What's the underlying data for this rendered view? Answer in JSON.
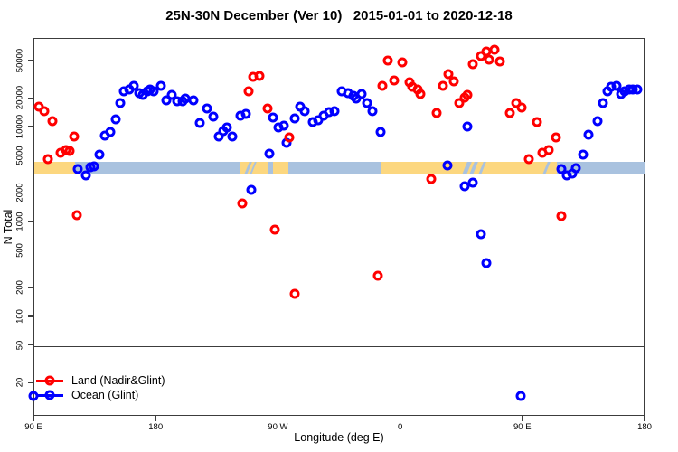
{
  "chart_data": {
    "type": "scatter",
    "title": "25N-30N December (Ver 10)   2015-01-01 to 2020-12-18",
    "xlabel": "Longitude (deg E)",
    "ylabel": "N Total",
    "x_axis": {
      "min": 90,
      "max": 540,
      "wraps_globe": true,
      "ticks": [
        {
          "v": 90,
          "label": "90 E"
        },
        {
          "v": 180,
          "label": "180"
        },
        {
          "v": 270,
          "label": "90 W"
        },
        {
          "v": 360,
          "label": "0"
        },
        {
          "v": 450,
          "label": "90 E"
        },
        {
          "v": 540,
          "label": "180"
        }
      ]
    },
    "y_axis": {
      "scale": "log",
      "min": 9,
      "max": 85000,
      "ticks": [
        {
          "v": 20,
          "label": "20"
        },
        {
          "v": 50,
          "label": "50"
        },
        {
          "v": 100,
          "label": "100"
        },
        {
          "v": 200,
          "label": "200"
        },
        {
          "v": 500,
          "label": "500"
        },
        {
          "v": 1000,
          "label": "1000"
        },
        {
          "v": 2000,
          "label": "2000"
        },
        {
          "v": 5000,
          "label": "5000"
        },
        {
          "v": 10000,
          "label": "10000"
        },
        {
          "v": 20000,
          "label": "20000"
        },
        {
          "v": 50000,
          "label": "50000"
        }
      ]
    },
    "reference_line_y": 50,
    "map_band": {
      "n_top": 4350,
      "n_bottom": 3200,
      "ocean_color": "#a9c2df",
      "land_color": "#fcd77f",
      "land_segments": [
        [
          90,
          120
        ],
        [
          241,
          262
        ],
        [
          266,
          277
        ],
        [
          345,
          475
        ]
      ],
      "ocean_streaks": [
        [
          246.5,
          248.5
        ],
        [
          250.5,
          252
        ],
        [
          407,
          410
        ],
        [
          412,
          414.5
        ],
        [
          419,
          421
        ],
        [
          466,
          468
        ]
      ]
    },
    "legend": {
      "position": "bottom-left"
    },
    "series": [
      {
        "name": "Land (Nadir&Glint)",
        "color": "#ff0000",
        "marker": "open-circle",
        "points": [
          [
            93,
            16600
          ],
          [
            97,
            14800
          ],
          [
            103,
            11700
          ],
          [
            100,
            4640
          ],
          [
            109,
            5410
          ],
          [
            113,
            5780
          ],
          [
            116,
            5650
          ],
          [
            119,
            8030
          ],
          [
            121,
            1190
          ],
          [
            243,
            1590
          ],
          [
            248,
            24000
          ],
          [
            251,
            34100
          ],
          [
            256,
            34900
          ],
          [
            262,
            15900
          ],
          [
            267,
            840
          ],
          [
            278,
            7850
          ],
          [
            282,
            177
          ],
          [
            343,
            274
          ],
          [
            346,
            27400
          ],
          [
            350,
            50700
          ],
          [
            355,
            31300
          ],
          [
            361,
            48500
          ],
          [
            366,
            29900
          ],
          [
            368,
            26900
          ],
          [
            372,
            25100
          ],
          [
            374,
            22500
          ],
          [
            382,
            2870
          ],
          [
            386,
            14200
          ],
          [
            391,
            27400
          ],
          [
            395,
            36500
          ],
          [
            399,
            30600
          ],
          [
            403,
            18100
          ],
          [
            407,
            20600
          ],
          [
            409,
            22000
          ],
          [
            413,
            46400
          ],
          [
            419,
            56500
          ],
          [
            423,
            63100
          ],
          [
            425,
            51800
          ],
          [
            429,
            65900
          ],
          [
            433,
            49500
          ],
          [
            440,
            14200
          ],
          [
            445,
            18100
          ],
          [
            449,
            16200
          ],
          [
            454,
            4640
          ],
          [
            460,
            11400
          ],
          [
            464,
            5410
          ],
          [
            469,
            5780
          ],
          [
            474,
            7850
          ],
          [
            478,
            1170
          ]
        ]
      },
      {
        "name": "Ocean (Glint)",
        "color": "#0000ff",
        "marker": "open-circle",
        "points": [
          [
            89,
            15
          ],
          [
            122,
            3650
          ],
          [
            128,
            3130
          ],
          [
            131,
            3820
          ],
          [
            134,
            3900
          ],
          [
            138,
            5180
          ],
          [
            142,
            8220
          ],
          [
            146,
            8950
          ],
          [
            150,
            12200
          ],
          [
            153,
            18100
          ],
          [
            156,
            24100
          ],
          [
            160,
            25200
          ],
          [
            163,
            27400
          ],
          [
            167,
            23000
          ],
          [
            170,
            21900
          ],
          [
            173,
            24100
          ],
          [
            175,
            25200
          ],
          [
            178,
            24100
          ],
          [
            183,
            27400
          ],
          [
            187,
            19400
          ],
          [
            191,
            21900
          ],
          [
            195,
            18900
          ],
          [
            199,
            18900
          ],
          [
            201,
            20200
          ],
          [
            207,
            19400
          ],
          [
            212,
            11200
          ],
          [
            217,
            15900
          ],
          [
            222,
            13000
          ],
          [
            226,
            8030
          ],
          [
            229,
            9150
          ],
          [
            232,
            10000
          ],
          [
            236,
            8030
          ],
          [
            242,
            13300
          ],
          [
            246,
            13900
          ],
          [
            250,
            2200
          ],
          [
            263,
            5300
          ],
          [
            266,
            12800
          ],
          [
            270,
            10000
          ],
          [
            274,
            10500
          ],
          [
            276,
            6900
          ],
          [
            282,
            12500
          ],
          [
            286,
            16600
          ],
          [
            289,
            14800
          ],
          [
            295,
            11400
          ],
          [
            299,
            11900
          ],
          [
            303,
            13300
          ],
          [
            307,
            14500
          ],
          [
            311,
            14800
          ],
          [
            316,
            24100
          ],
          [
            321,
            23000
          ],
          [
            325,
            21500
          ],
          [
            327,
            20200
          ],
          [
            331,
            22500
          ],
          [
            335,
            18100
          ],
          [
            339,
            14800
          ],
          [
            345,
            8950
          ],
          [
            394,
            4000
          ],
          [
            407,
            2400
          ],
          [
            409,
            10200
          ],
          [
            413,
            2630
          ],
          [
            419,
            750
          ],
          [
            423,
            373
          ],
          [
            448,
            15
          ],
          [
            478,
            3650
          ],
          [
            482,
            3130
          ],
          [
            486,
            3270
          ],
          [
            489,
            3730
          ],
          [
            494,
            5180
          ],
          [
            498,
            8400
          ],
          [
            505,
            11700
          ],
          [
            509,
            18100
          ],
          [
            512,
            24100
          ],
          [
            515,
            26900
          ],
          [
            519,
            27400
          ],
          [
            522,
            22500
          ],
          [
            525,
            24100
          ],
          [
            528,
            25200
          ],
          [
            531,
            25200
          ],
          [
            534,
            25200
          ]
        ]
      }
    ]
  }
}
